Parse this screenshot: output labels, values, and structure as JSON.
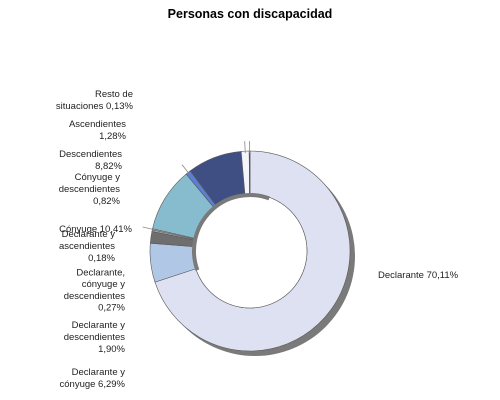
{
  "chart_data": {
    "type": "pie",
    "style": "donut",
    "title": "Personas con discapacidad",
    "slices": [
      {
        "label": "Declarante 70,11%",
        "value": 70.11,
        "color": "#dde1f1"
      },
      {
        "label": "Declarante y cónyuge 6,29%",
        "value": 6.29,
        "color": "#b1c7e6"
      },
      {
        "label": "Declarante y descendientes 1,90%",
        "value": 1.9,
        "color": "#6e6e6e"
      },
      {
        "label": "Declarante, cónyuge y descendientes 0,27%",
        "value": 0.27,
        "color": "#a7a7a7"
      },
      {
        "label": "Declarante y ascendientes 0,18%",
        "value": 0.18,
        "color": "#d3d3d3"
      },
      {
        "label": "Cónyuge 10,41%",
        "value": 10.41,
        "color": "#86bccd"
      },
      {
        "label": "Cónyuge y descendientes 0,82%",
        "value": 0.82,
        "color": "#5b7fd3"
      },
      {
        "label": "Descendientes 8,82%",
        "value": 8.82,
        "color": "#3f4f84"
      },
      {
        "label": "Ascendientes 1,28%",
        "value": 1.28,
        "color": "#f4f6fb"
      },
      {
        "label": "Resto de situaciones 0,13%",
        "value": 0.13,
        "color": "#3c3c3c"
      }
    ]
  },
  "labels": [
    {
      "key": "declarante",
      "lines": [
        "Declarante 70,11%"
      ]
    },
    {
      "key": "declarante-conyuge",
      "lines": [
        "Declarante y",
        "cónyuge 6,29%"
      ]
    },
    {
      "key": "declarante-descendientes",
      "lines": [
        "Declarante y",
        "descendientes",
        "1,90%"
      ]
    },
    {
      "key": "declarante-conyuge-descendientes",
      "lines": [
        "Declarante,",
        "cónyuge y",
        "descendientes",
        "0,27%"
      ]
    },
    {
      "key": "declarante-ascendientes",
      "lines": [
        "Declarante y",
        "ascendientes",
        "0,18%"
      ]
    },
    {
      "key": "conyuge",
      "lines": [
        "Cónyuge 10,41%"
      ]
    },
    {
      "key": "conyuge-descendientes",
      "lines": [
        "Cónyuge y",
        "descendientes",
        "0,82%"
      ]
    },
    {
      "key": "descendientes",
      "lines": [
        "Descendientes",
        "8,82%"
      ]
    },
    {
      "key": "ascendientes",
      "lines": [
        "Ascendientes",
        "1,28%"
      ]
    },
    {
      "key": "resto",
      "lines": [
        "Resto de",
        "situaciones 0,13%"
      ]
    }
  ]
}
